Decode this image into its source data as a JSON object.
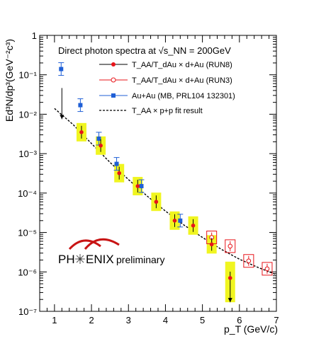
{
  "chart_data": {
    "type": "scatter",
    "title": "Direct photon spectra at √s_NN = 200GeV",
    "xlabel": "p_T (GeV/c)",
    "ylabel": "Ed³N/dp³(GeV⁻²c³)",
    "x_scale": "linear",
    "y_scale": "log",
    "xlim": [
      0.6,
      7.0
    ],
    "ylim": [
      1e-07,
      1
    ],
    "x_ticks": [
      "1",
      "2",
      "3",
      "4",
      "5",
      "6",
      "7"
    ],
    "y_ticks": [
      "1",
      "10⁻¹",
      "10⁻²",
      "10⁻³",
      "10⁻⁴",
      "10⁻⁵",
      "10⁻⁶",
      "10⁻⁷"
    ],
    "legend_placement": "top-right",
    "series": [
      {
        "name": "T_AA/T_dAu × d+Au (RUN8)",
        "marker": "filled-circle",
        "color": "#e8141a",
        "sys_band_color": "#f0f520",
        "points": [
          {
            "x": 1.2,
            "y": null,
            "upper_limit": 0.0075
          },
          {
            "x": 1.73,
            "y": 0.0035
          },
          {
            "x": 2.25,
            "y": 0.0016
          },
          {
            "x": 2.75,
            "y": 0.00032
          },
          {
            "x": 3.25,
            "y": 0.00015
          },
          {
            "x": 3.75,
            "y": 6e-05
          },
          {
            "x": 4.25,
            "y": 2e-05
          },
          {
            "x": 4.75,
            "y": 1.5e-05
          },
          {
            "x": 5.25,
            "y": 5e-06
          },
          {
            "x": 5.75,
            "y": 7e-07,
            "upper_limit": 1.7e-07
          }
        ]
      },
      {
        "name": "T_AA/T_dAu × d+Au (RUN3)",
        "marker": "open-circle",
        "color": "#e8141a",
        "points": [
          {
            "x": 5.25,
            "y": 7.5e-06
          },
          {
            "x": 5.75,
            "y": 4.5e-06
          },
          {
            "x": 6.25,
            "y": 1.9e-06
          },
          {
            "x": 6.75,
            "y": 1.2e-06
          }
        ]
      },
      {
        "name": "Au+Au (MB, PRL104 132301)",
        "marker": "filled-square",
        "color": "#1f5fd6",
        "points": [
          {
            "x": 1.18,
            "y": 0.14
          },
          {
            "x": 1.7,
            "y": 0.017
          },
          {
            "x": 2.2,
            "y": 0.0024
          },
          {
            "x": 2.68,
            "y": 0.00055
          },
          {
            "x": 3.35,
            "y": 0.00015
          },
          {
            "x": 4.4,
            "y": 2e-05
          }
        ]
      },
      {
        "name": "T_AA × p+p fit result",
        "style": "dashed-line",
        "color": "#000000",
        "x": [
          1.0,
          1.5,
          2.0,
          2.5,
          3.0,
          3.5,
          4.0,
          4.5,
          5.0,
          5.5,
          6.0,
          6.5,
          7.0
        ],
        "y": [
          0.014,
          0.0055,
          0.0018,
          0.0006,
          0.00022,
          8.5e-05,
          3.5e-05,
          1.55e-05,
          7.5e-06,
          3.8e-06,
          2.1e-06,
          1.3e-06,
          8.5e-07
        ]
      }
    ]
  },
  "legend": {
    "title": "Direct photon spectra at √s_NN = 200GeV",
    "items": [
      "T_AA/T_dAu × d+Au (RUN8)",
      "T_AA/T_dAu × d+Au (RUN3)",
      "Au+Au (MB, PRL104 132301)",
      "T_AA × p+p fit result"
    ]
  },
  "logo": {
    "text_left": "PH",
    "text_right": "ENIX",
    "tag": "preliminary",
    "tag_color": "#e8141a"
  },
  "colors": {
    "run8": "#e8141a",
    "auau": "#1f5fd6",
    "band": "#f0f520",
    "fit": "#000000"
  }
}
